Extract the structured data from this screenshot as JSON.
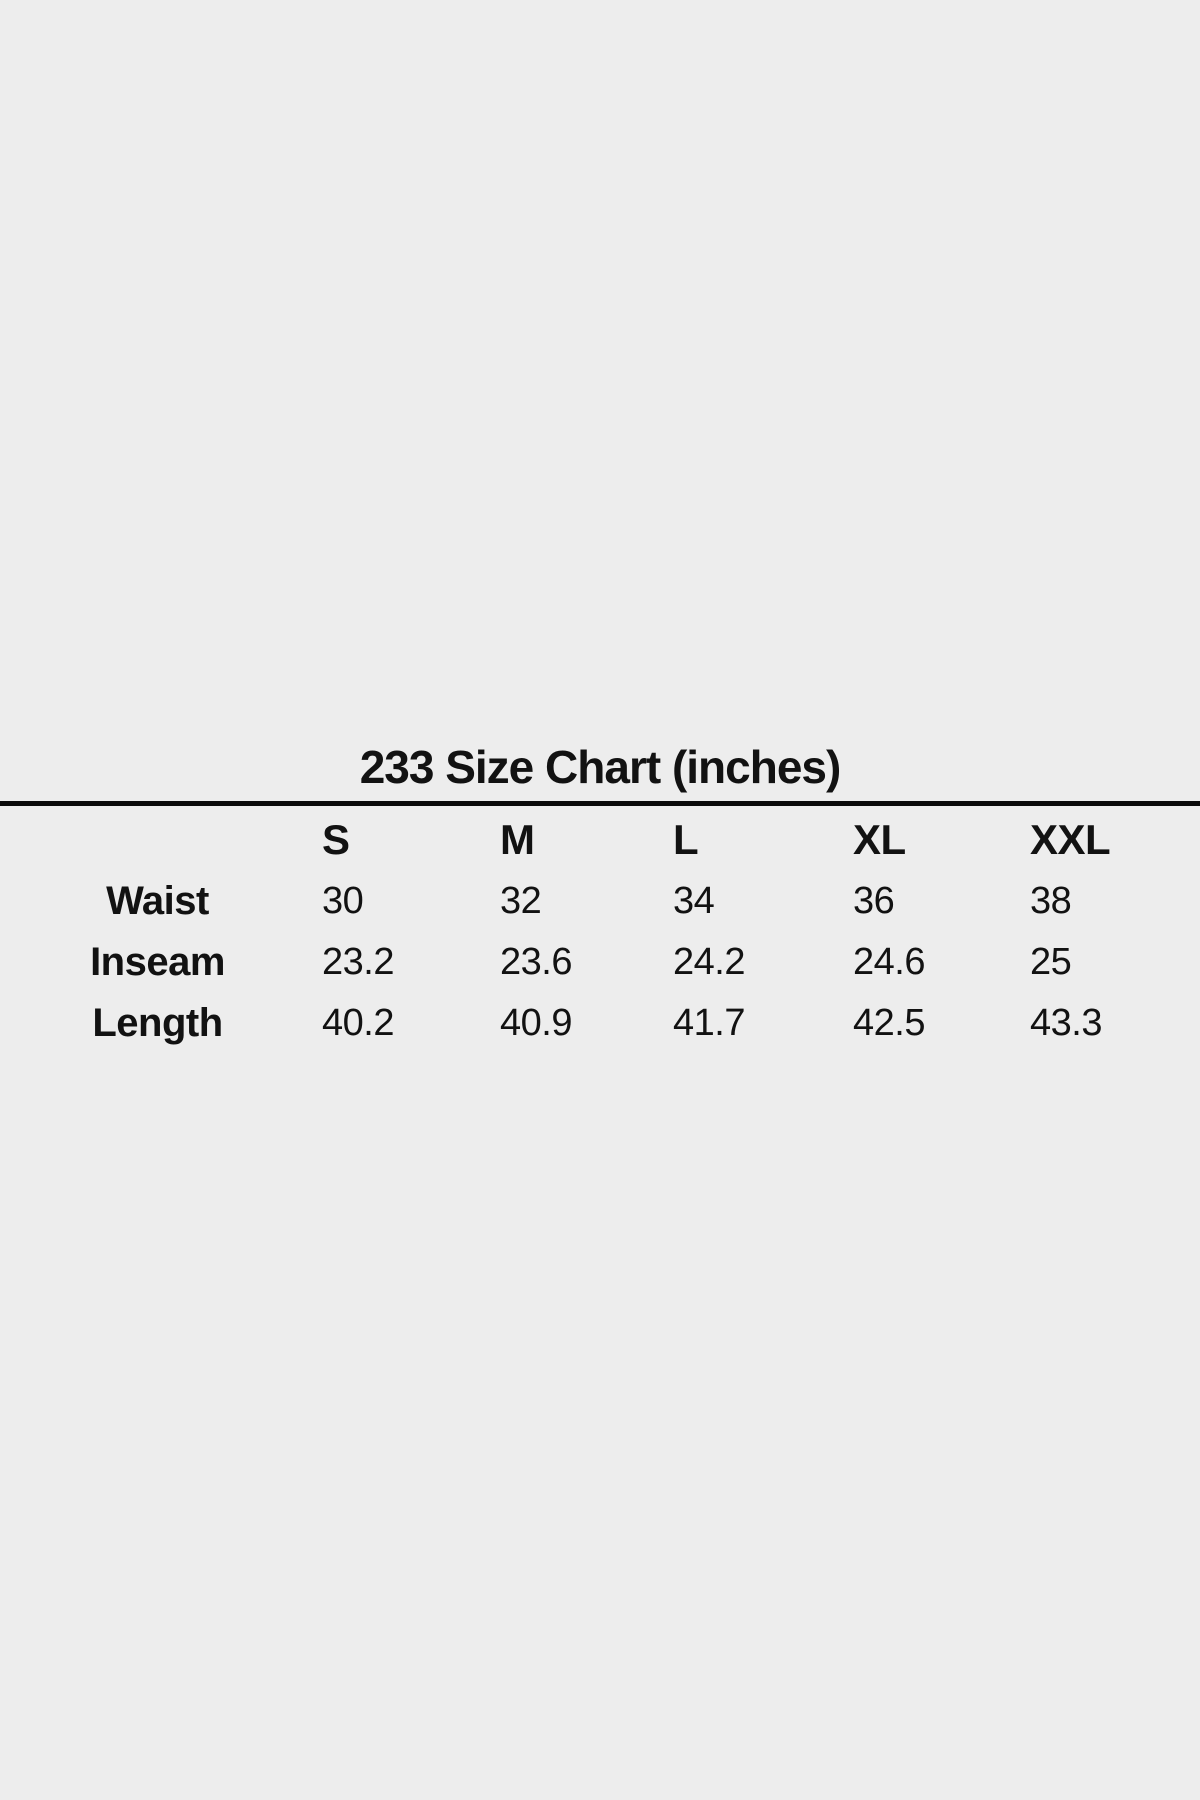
{
  "title": "233 Size Chart (inches)",
  "table": {
    "columns": [
      "S",
      "M",
      "L",
      "XL",
      "XXL"
    ],
    "rows": [
      {
        "label": "Waist",
        "values": [
          "30",
          "32",
          "34",
          "36",
          "38"
        ]
      },
      {
        "label": "Inseam",
        "values": [
          "23.2",
          "23.6",
          "24.2",
          "24.6",
          "25"
        ]
      },
      {
        "label": "Length",
        "values": [
          "40.2",
          "40.9",
          "41.7",
          "42.5",
          "43.3"
        ]
      }
    ]
  },
  "chart_data": {
    "type": "table",
    "title": "233 Size Chart (inches)",
    "units": "inches",
    "columns": [
      "S",
      "M",
      "L",
      "XL",
      "XXL"
    ],
    "row_labels": [
      "Waist",
      "Inseam",
      "Length"
    ],
    "values": [
      [
        30,
        32,
        34,
        36,
        38
      ],
      [
        23.2,
        23.6,
        24.2,
        24.6,
        25
      ],
      [
        40.2,
        40.9,
        41.7,
        42.5,
        43.3
      ]
    ]
  },
  "colors": {
    "background": "#ededed",
    "text": "#121212",
    "divider": "#0a0a0a"
  }
}
